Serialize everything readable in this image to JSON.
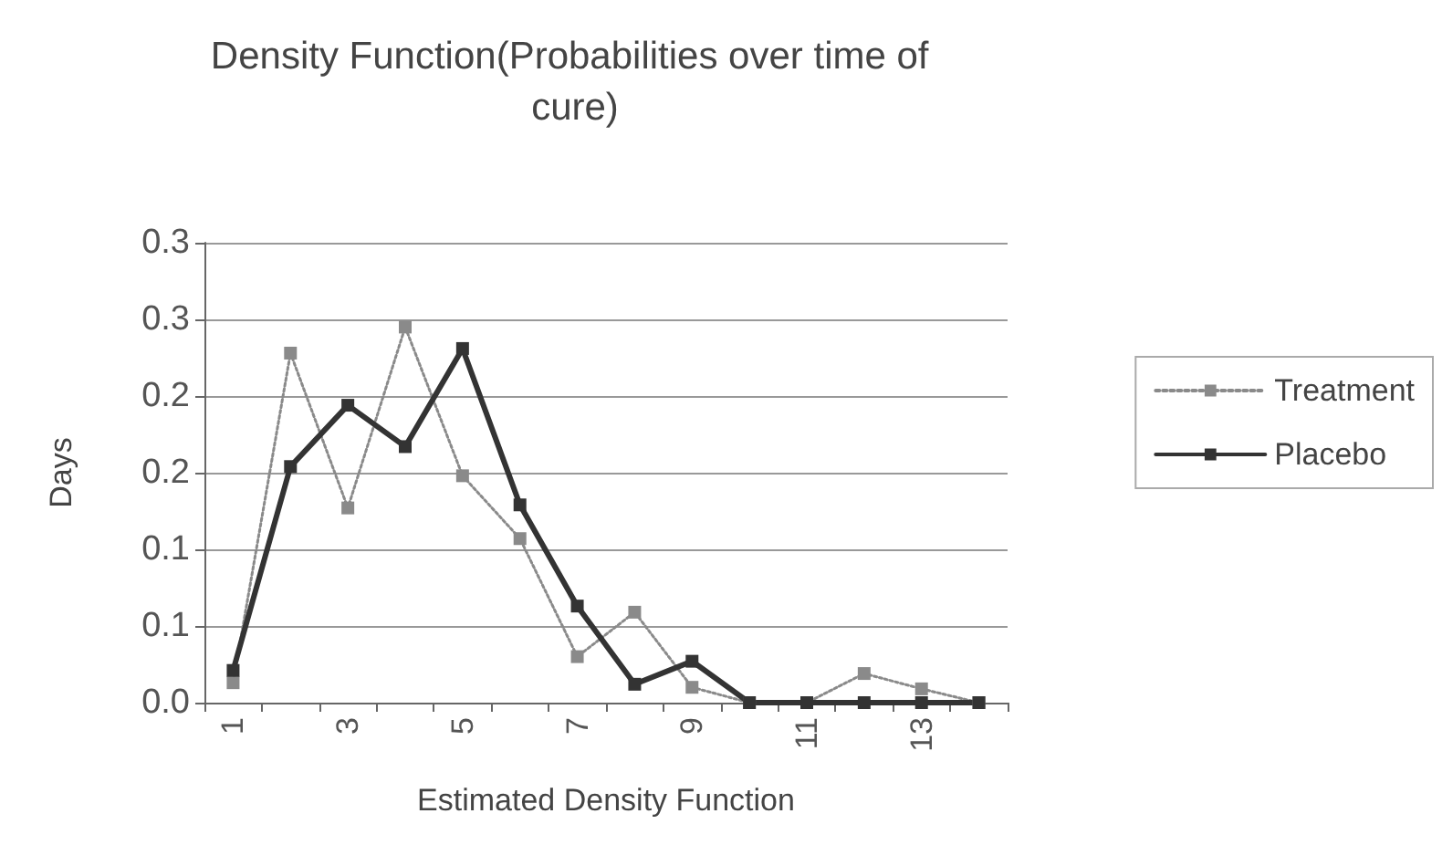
{
  "chart_data": {
    "type": "line",
    "title": "Density Function(Probabilities over time of cure)",
    "xlabel": "Estimated Density Function",
    "ylabel": "Days",
    "categories": [
      "1",
      null,
      "3",
      null,
      "5",
      null,
      "7",
      null,
      "9",
      null,
      "11",
      null,
      "13",
      null
    ],
    "series": [
      {
        "name": "Treatment",
        "color": "#8a8a8a",
        "line_style": "dotted",
        "values": [
          0.013,
          0.228,
          0.127,
          0.245,
          0.148,
          0.107,
          0.03,
          0.059,
          0.01,
          0,
          0,
          0.019,
          0.009,
          0
        ]
      },
      {
        "name": "Placebo",
        "color": "#333333",
        "line_style": "solid",
        "values": [
          0.021,
          0.154,
          0.194,
          0.167,
          0.231,
          0.129,
          0.063,
          0.012,
          0.027,
          0,
          0,
          0,
          0,
          0
        ]
      }
    ],
    "ylim": [
      0,
      0.3
    ],
    "yticks": [
      {
        "value": 0,
        "label": "0.0"
      },
      {
        "value": 0.05,
        "label": "0.1"
      },
      0.1,
      {
        "value": 0.15,
        "label": "0.2"
      },
      0.2,
      {
        "value": 0.25,
        "label": "0.3"
      },
      0.3
    ],
    "grid": "y",
    "legend": "right",
    "marker": "square"
  }
}
